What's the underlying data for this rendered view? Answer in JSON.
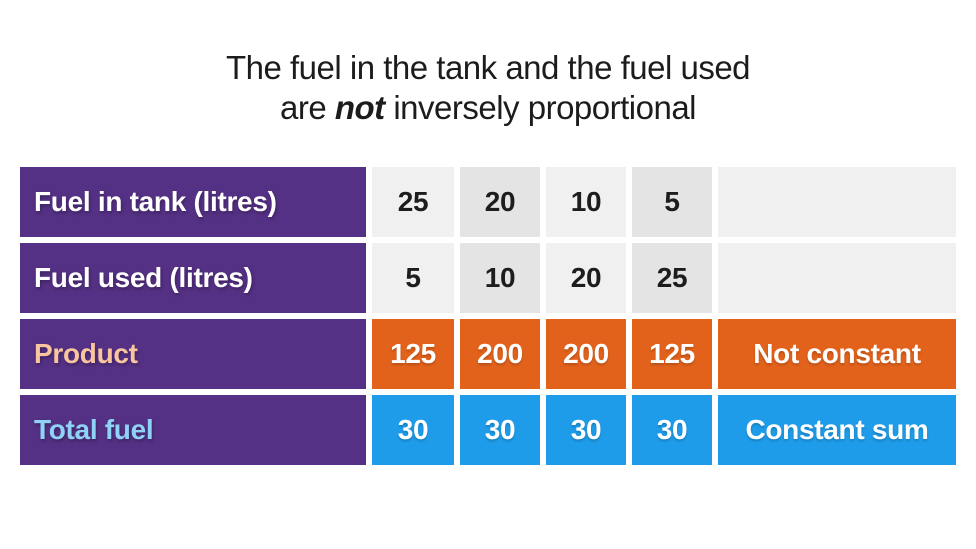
{
  "title": {
    "line1": "The fuel in the tank and the fuel used",
    "line2_prefix": "are ",
    "line2_emphasis": "not",
    "line2_suffix": " inversely proportional"
  },
  "table": {
    "rows": [
      {
        "label": "Fuel in tank (litres)",
        "label_color": "#FFFFFF",
        "type": "gray",
        "values": [
          "25",
          "20",
          "10",
          "5"
        ],
        "note": ""
      },
      {
        "label": "Fuel used (litres)",
        "label_color": "#FFFFFF",
        "type": "gray",
        "values": [
          "5",
          "10",
          "20",
          "25"
        ],
        "note": ""
      },
      {
        "label": "Product",
        "label_color": "#F8C59E",
        "type": "orange",
        "values": [
          "125",
          "200",
          "200",
          "125"
        ],
        "note": "Not constant"
      },
      {
        "label": "Total fuel",
        "label_color": "#8ED2F6",
        "type": "blue",
        "values": [
          "30",
          "30",
          "30",
          "30"
        ],
        "note": "Constant sum"
      }
    ]
  },
  "colors": {
    "purple": "#553185",
    "orange": "#E2621B",
    "blue": "#1E9CE9",
    "cell_light": "#F0F0F0",
    "cell_dark": "#E4E4E4",
    "value_text_dark": "#1D1D1D",
    "value_text_light": "#FFFFFF"
  }
}
